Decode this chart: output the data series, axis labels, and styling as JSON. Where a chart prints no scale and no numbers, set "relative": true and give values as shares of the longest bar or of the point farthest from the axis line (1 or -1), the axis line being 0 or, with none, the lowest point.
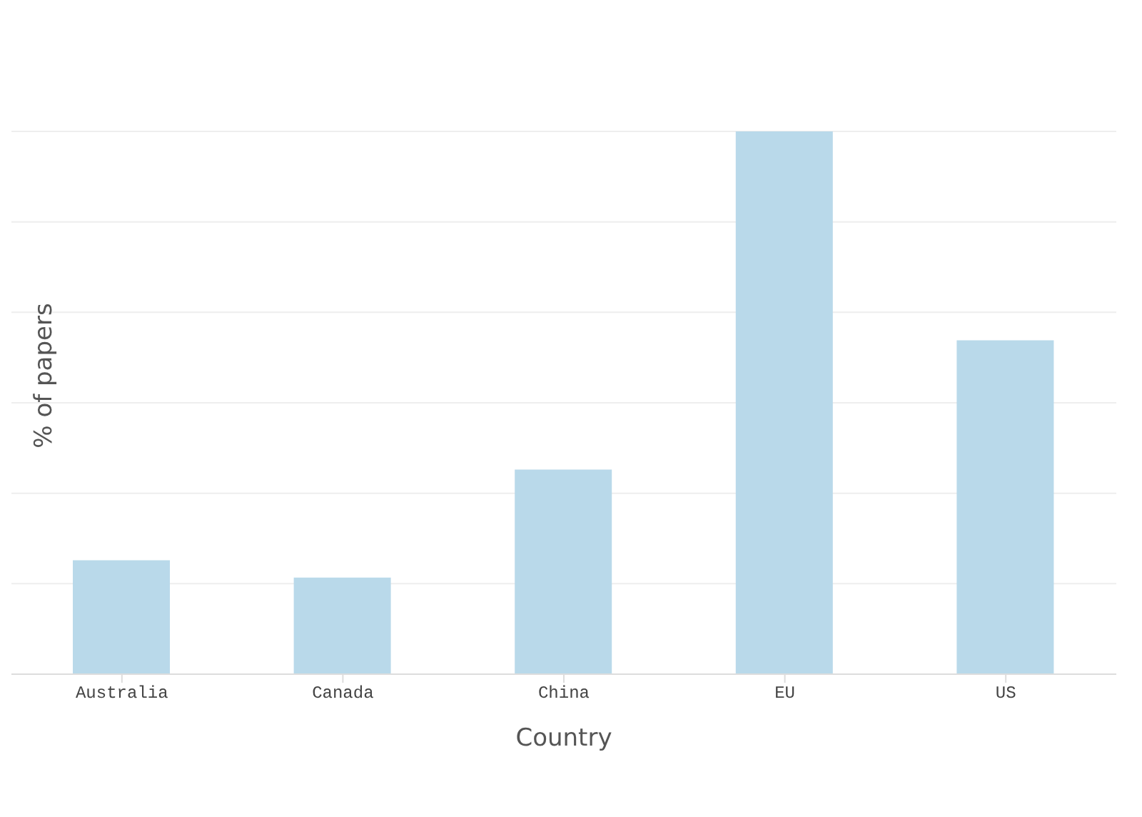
{
  "chart_data": {
    "type": "bar",
    "relative": true,
    "xlabel": "Country",
    "ylabel": "% of papers",
    "categories": [
      "Australia",
      "Canada",
      "China",
      "EU",
      "US"
    ],
    "values": [
      0.21,
      0.178,
      0.377,
      1,
      0.615
    ],
    "color": "#b9d9ea",
    "grid": "y"
  }
}
